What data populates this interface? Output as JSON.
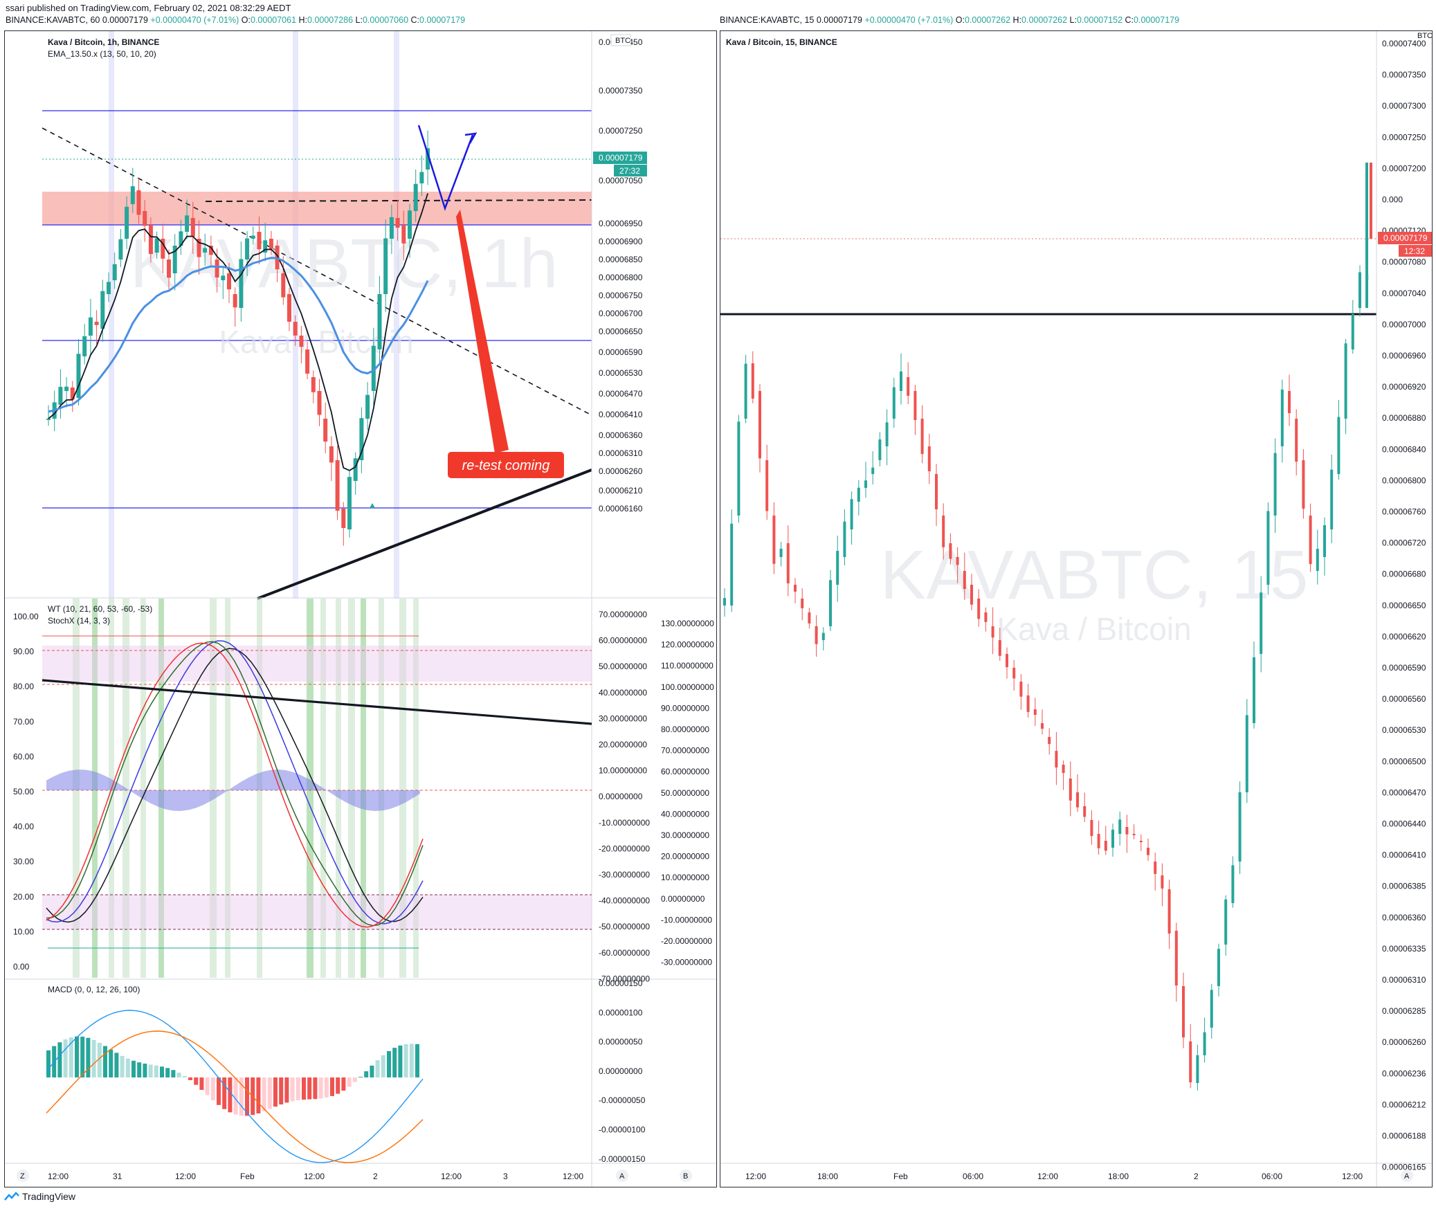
{
  "header": {
    "published": "ssari published on TradingView.com, February 02, 2021 08:32:29 AEDT",
    "left_symbol": "BINANCE:KAVABTC, 60",
    "left_price": "0.00007179",
    "left_change": "+0.00000470 (+7.01%)",
    "left_o_label": "O:",
    "left_o": "0.00007061",
    "left_h_label": "H:",
    "left_h": "0.00007286",
    "left_l_label": "L:",
    "left_l": "0.00007060",
    "left_c_label": "C:",
    "left_c": "0.00007179",
    "right_symbol": "BINANCE:KAVABTC, 15",
    "right_price": "0.00007179",
    "right_change": "+0.00000470 (+7.01%)",
    "right_o_label": "O:",
    "right_o": "0.00007262",
    "right_h_label": "H:",
    "right_h": "0.00007262",
    "right_l_label": "L:",
    "right_l": "0.00007152",
    "right_c_label": "C:",
    "right_c": "0.00007179"
  },
  "left_chart": {
    "title": "Kava / Bitcoin, 1h, BINANCE",
    "indicator": "EMA_13.50.x (13, 50, 10, 20)",
    "currency": "BTC",
    "watermark_big": "KAVABTC, 1h",
    "watermark_small": "Kava / Bitcoin",
    "price_tag": "0.00007179",
    "price_tag_time": "27:32",
    "annotation": "re-test coming",
    "price_ticks": [
      "0.00007450",
      "0.00007350",
      "0.00007250",
      "0.00007100",
      "0.00007050",
      "0.00006950",
      "0.00006900",
      "0.00006850",
      "0.00006800",
      "0.00006750",
      "0.00006700",
      "0.00006650",
      "0.00006590",
      "0.00006530",
      "0.00006470",
      "0.00006410",
      "0.00006360",
      "0.00006310",
      "0.00006260",
      "0.00006210",
      "0.00006160"
    ],
    "time_ticks": [
      "12:00",
      "31",
      "12:00",
      "Feb",
      "12:00",
      "2",
      "12:00",
      "3",
      "12:00"
    ],
    "bottom_buttons": {
      "z": "Z",
      "a": "A",
      "b": "B"
    }
  },
  "osc_panel": {
    "wt_label": "WT (10, 21, 60, 53, -60, -53)",
    "stoch_label": "StochX (14, 3, 3)",
    "left_ticks": [
      "100.00",
      "90.00",
      "80.00",
      "70.00",
      "60.00",
      "50.00",
      "40.00",
      "30.00",
      "20.00",
      "10.00",
      "0.00"
    ],
    "mid_ticks": [
      "70.00000000",
      "60.00000000",
      "50.00000000",
      "40.00000000",
      "30.00000000",
      "20.00000000",
      "10.00000000",
      "0.00000000",
      "-10.00000000",
      "-20.00000000",
      "-30.00000000",
      "-40.00000000",
      "-50.00000000",
      "-60.00000000",
      "-70.00000000"
    ],
    "right_ticks": [
      "130.00000000",
      "120.00000000",
      "110.00000000",
      "100.00000000",
      "90.00000000",
      "80.00000000",
      "70.00000000",
      "60.00000000",
      "50.00000000",
      "40.00000000",
      "30.00000000",
      "20.00000000",
      "10.00000000",
      "0.00000000",
      "-10.00000000",
      "-20.00000000",
      "-30.00000000"
    ]
  },
  "macd_panel": {
    "label": "MACD (0, 0, 12, 26, 100)",
    "ticks": [
      "0.00000150",
      "0.00000100",
      "0.00000050",
      "0.00000000",
      "-0.00000050",
      "-0.00000100",
      "-0.00000150"
    ]
  },
  "right_chart": {
    "title": "Kava / Bitcoin, 15, BINANCE",
    "currency": "BTC",
    "watermark_big": "KAVABTC, 15",
    "watermark_small": "Kava / Bitcoin",
    "price_tag": "0.00007179",
    "price_tag_time": "12:32",
    "price_ticks": [
      "0.00007400",
      "0.00007350",
      "0.00007300",
      "0.00007250",
      "0.00007200",
      "0.000",
      "0.00007120",
      "0.00007080",
      "0.00007040",
      "0.00007000",
      "0.00006960",
      "0.00006920",
      "0.00006880",
      "0.00006840",
      "0.00006800",
      "0.00006760",
      "0.00006720",
      "0.00006680",
      "0.00006650",
      "0.00006620",
      "0.00006590",
      "0.00006560",
      "0.00006530",
      "0.00006500",
      "0.00006470",
      "0.00006440",
      "0.00006410",
      "0.00006385",
      "0.00006360",
      "0.00006335",
      "0.00006310",
      "0.00006285",
      "0.00006260",
      "0.00006236",
      "0.00006212",
      "0.00006188",
      "0.00006165"
    ],
    "time_ticks": [
      "12:00",
      "18:00",
      "Feb",
      "06:00",
      "12:00",
      "18:00",
      "2",
      "06:00",
      "12:00"
    ],
    "bottom_button": "A"
  },
  "footer": {
    "brand": "TradingView"
  },
  "chart_data": [
    {
      "type": "candlestick",
      "title": "Kava / Bitcoin, 1h, BINANCE",
      "ylabel": "BTC",
      "ylim": [
        6.16e-05,
        7.45e-05
      ],
      "levels": [
        7.288e-05,
        7.113e-05,
        7.041e-05,
        6.753e-05,
        6.331e-05
      ],
      "resistance_zone": [
        7.041e-05,
        7.113e-05
      ]
    },
    {
      "type": "line",
      "title": "WT (10, 21, 60, 53, -60, -53) / StochX (14, 3, 3)",
      "ylim": [
        0,
        100
      ]
    },
    {
      "type": "bar",
      "title": "MACD (0, 0, 12, 26, 100)",
      "ylim": [
        -1.5e-06,
        1.5e-06
      ]
    },
    {
      "type": "candlestick",
      "title": "Kava / Bitcoin, 15, BINANCE",
      "ylabel": "BTC",
      "ylim": [
        6.16e-05,
        7.41e-05
      ],
      "levels": [
        7.1e-05
      ]
    }
  ]
}
